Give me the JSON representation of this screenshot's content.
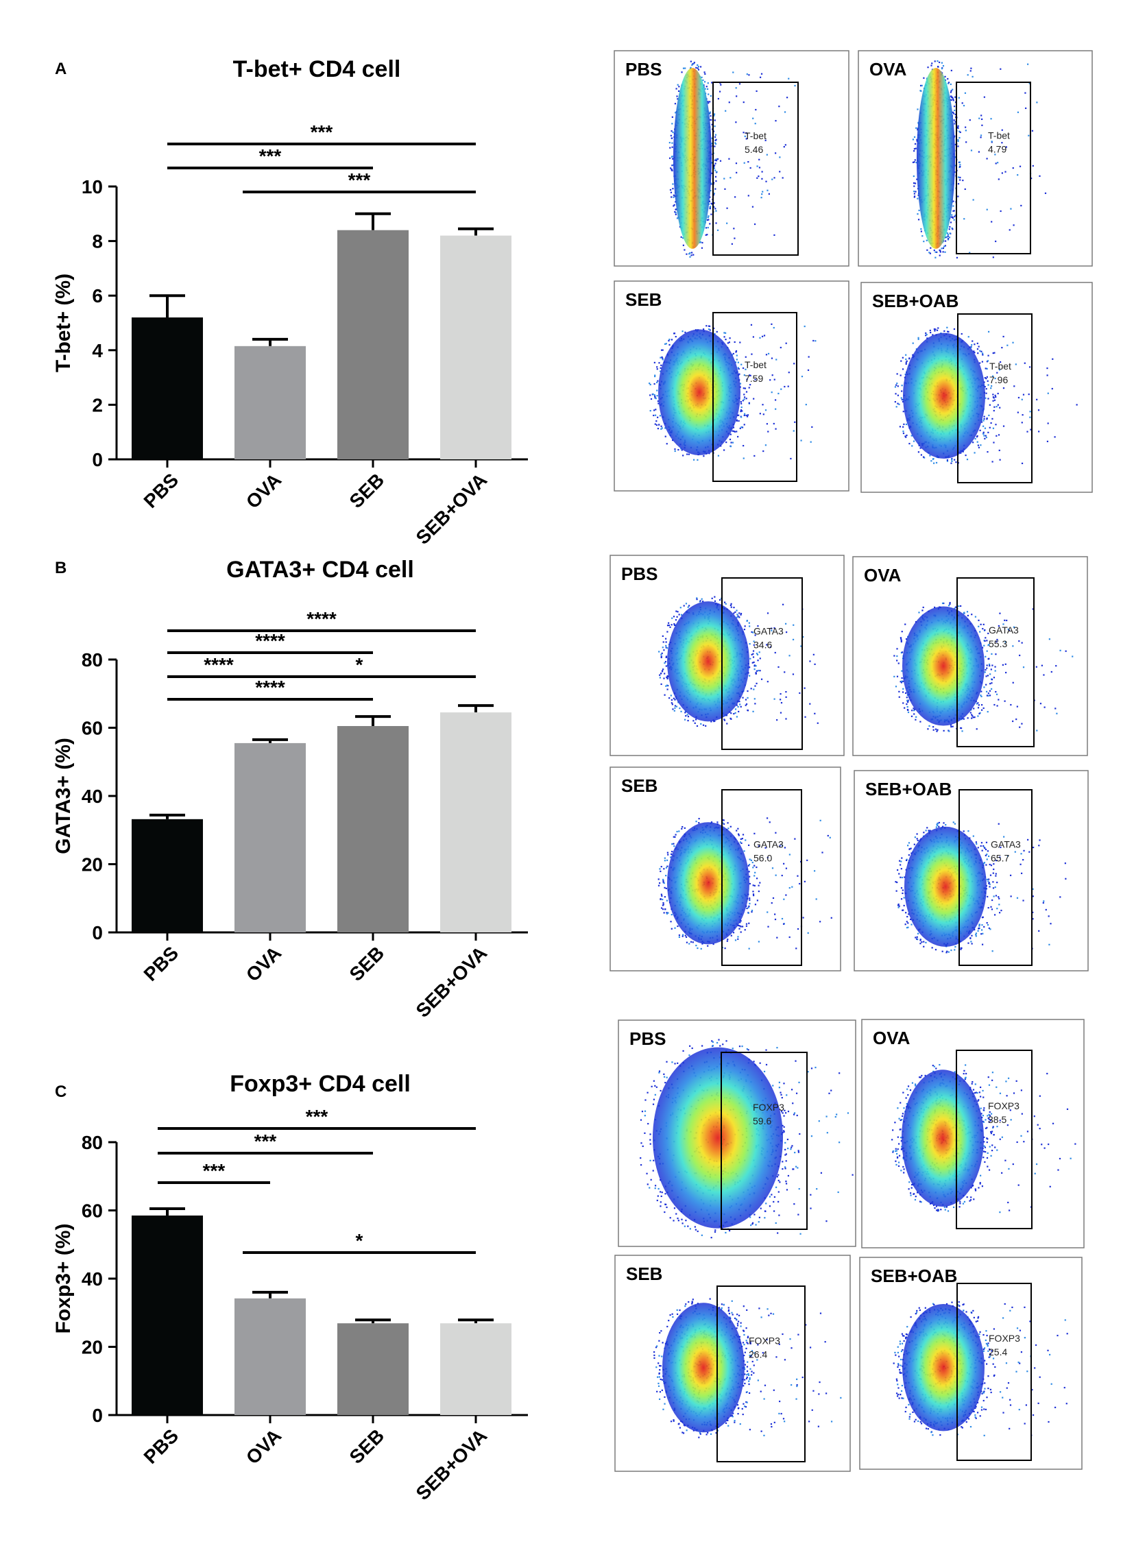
{
  "colors": {
    "bars": [
      "#050808",
      "#9c9da0",
      "#818181",
      "#d6d7d6"
    ],
    "dotplot_gradient": [
      "#1b2fd6",
      "#2e8be6",
      "#3fe0d0",
      "#9af050",
      "#f5e020",
      "#f07818",
      "#e01818"
    ]
  },
  "chart_data": [
    {
      "type": "bar",
      "panel": "A",
      "title": "T-bet+ CD4 cell",
      "categories": [
        "PBS",
        "OVA",
        "SEB",
        "SEB+OVA"
      ],
      "values": [
        5.2,
        4.15,
        8.4,
        8.2
      ],
      "errors": [
        0.8,
        0.25,
        0.6,
        0.25
      ],
      "ylabel": "T-bet+ (%)",
      "ylim": [
        0,
        10
      ],
      "yticks": [
        "0",
        "2",
        "4",
        "6",
        "8",
        "10"
      ],
      "significance": [
        {
          "from": 0,
          "to": 3,
          "label": "***",
          "level": 1
        },
        {
          "from": 0,
          "to": 2,
          "label": "***",
          "level": 2
        },
        {
          "from": 1,
          "to": 3,
          "label": "***",
          "level": 3
        }
      ]
    },
    {
      "type": "bar",
      "panel": "B",
      "title": "GATA3+ CD4 cell",
      "categories": [
        "PBS",
        "OVA",
        "SEB",
        "SEB+OVA"
      ],
      "values": [
        33.2,
        55.5,
        60.5,
        64.5
      ],
      "errors": [
        1.2,
        1.0,
        2.8,
        2.0
      ],
      "ylabel": "GATA3+ (%)",
      "ylim": [
        0,
        80
      ],
      "yticks": [
        "0",
        "20",
        "40",
        "60",
        "80"
      ],
      "significance": [
        {
          "from": 0,
          "to": 3,
          "label": "****",
          "level": 1
        },
        {
          "from": 0,
          "to": 2,
          "label": "****",
          "level": 2
        },
        {
          "from": 0,
          "to": 1,
          "label": "****",
          "level": 3
        },
        {
          "from": 1,
          "to": 3,
          "label": "*",
          "level": 3
        },
        {
          "from": 0,
          "to": 2,
          "label": "****",
          "level": 4
        }
      ]
    },
    {
      "type": "bar",
      "panel": "C",
      "title": "Foxp3+ CD4 cell",
      "categories": [
        "PBS",
        "OVA",
        "SEB",
        "SEB+OVA"
      ],
      "values": [
        58.5,
        34.2,
        26.9,
        26.9
      ],
      "errors": [
        2.0,
        1.8,
        1.0,
        1.0
      ],
      "ylabel": "Foxp3+ (%)",
      "ylim": [
        0,
        80
      ],
      "yticks": [
        "0",
        "20",
        "40",
        "60",
        "80"
      ],
      "significance": [
        {
          "from": 0,
          "to": 3,
          "label": "***",
          "level": 1
        },
        {
          "from": 0,
          "to": 2,
          "label": "***",
          "level": 2
        },
        {
          "from": 0,
          "to": 1,
          "label": "***",
          "level": 3
        },
        {
          "from": 1,
          "to": 3,
          "label": "*",
          "level": 4
        }
      ]
    }
  ],
  "dotplots": [
    {
      "row": 0,
      "name": "PBS",
      "marker": "T-bet",
      "value": "5.46",
      "shape": "column",
      "peak": 0.3
    },
    {
      "row": 0,
      "name": "OVA",
      "marker": "T-bet",
      "value": "4.79",
      "shape": "column",
      "peak": 0.7
    },
    {
      "row": 1,
      "name": "SEB",
      "marker": "T-bet",
      "value": "7.59",
      "shape": "blob",
      "peak": 0.55
    },
    {
      "row": 1,
      "name": "SEB+OAB",
      "marker": "T-bet",
      "value": "7.96",
      "shape": "blob",
      "peak": 0.6
    },
    {
      "row": 2,
      "name": "PBS",
      "marker": "GATA3",
      "value": "34.6",
      "shape": "blob",
      "peak": 0.55
    },
    {
      "row": 2,
      "name": "OVA",
      "marker": "GATA3",
      "value": "55.3",
      "shape": "blob",
      "peak": 0.65
    },
    {
      "row": 3,
      "name": "SEB",
      "marker": "GATA3",
      "value": "56.0",
      "shape": "blob",
      "peak": 0.75
    },
    {
      "row": 3,
      "name": "SEB+OAB",
      "marker": "GATA3",
      "value": "65.7",
      "shape": "blob",
      "peak": 0.8
    },
    {
      "row": 4,
      "name": "PBS",
      "marker": "FOXP3",
      "value": "59.6",
      "shape": "wide",
      "peak": 0.5
    },
    {
      "row": 4,
      "name": "OVA",
      "marker": "FOXP3",
      "value": "38.5",
      "shape": "blob",
      "peak": 0.5
    },
    {
      "row": 5,
      "name": "SEB",
      "marker": "FOXP3",
      "value": "26.4",
      "shape": "blob",
      "peak": 0.5
    },
    {
      "row": 5,
      "name": "SEB+OAB",
      "marker": "FOXP3",
      "value": "25.4",
      "shape": "blob",
      "peak": 0.5
    }
  ]
}
